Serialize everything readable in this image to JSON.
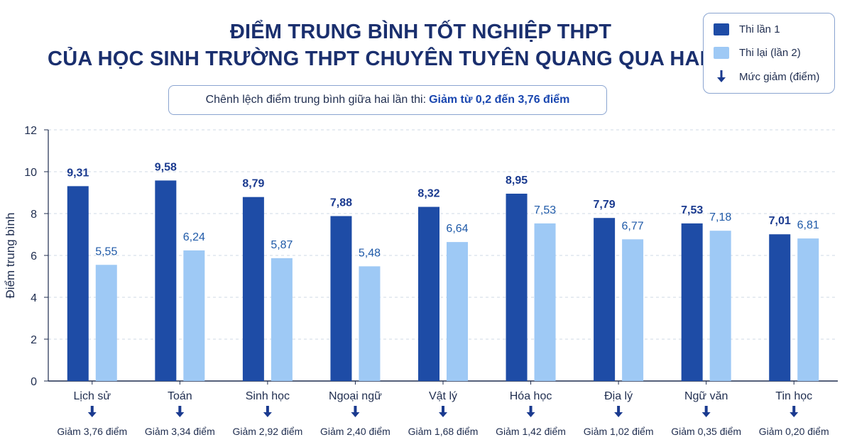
{
  "title_line1": "ĐIỂM TRUNG BÌNH TỐT NGHIỆP THPT",
  "title_line2": "CỦA HỌC SINH TRƯỜNG THPT CHUYÊN TUYÊN QUANG QUA HAI LẦN THI",
  "subtitle_prefix": "Chênh lệch điểm trung bình giữa hai lần thi:",
  "subtitle_highlight": "Giảm từ 0,2 đến 3,76 điểm",
  "legend": {
    "series1": "Thi lần 1",
    "series2": "Thi lại (lần 2)",
    "decrease": "Mức giảm (điểm)"
  },
  "colors": {
    "series1": "#1e4ca6",
    "series2": "#9ec9f5",
    "title": "#1a2f6e",
    "arrow": "#1a3a8f"
  },
  "chart_data": {
    "type": "bar",
    "ylabel": "Điểm trung bình",
    "ylim": [
      0,
      12
    ],
    "yticks": [
      0,
      2,
      4,
      6,
      8,
      10,
      12
    ],
    "grid": "horizontal dashed",
    "legend_position": "top-right",
    "categories": [
      "Lịch sử",
      "Toán",
      "Sinh học",
      "Ngoại ngữ",
      "Vật lý",
      "Hóa học",
      "Địa lý",
      "Ngữ văn",
      "Tin học"
    ],
    "series": [
      {
        "name": "Thi lần 1",
        "values": [
          9.31,
          9.58,
          8.79,
          7.88,
          8.32,
          8.95,
          7.79,
          7.53,
          7.01
        ],
        "labels": [
          "9,31",
          "9,58",
          "8,79",
          "7,88",
          "8,32",
          "8,95",
          "7,79",
          "7,53",
          "7,01"
        ]
      },
      {
        "name": "Thi lại (lần 2)",
        "values": [
          5.55,
          6.24,
          5.87,
          5.48,
          6.64,
          7.53,
          6.77,
          7.18,
          6.81
        ],
        "labels": [
          "5,55",
          "6,24",
          "5,87",
          "5,48",
          "6,64",
          "7,53",
          "6,77",
          "7,18",
          "6,81"
        ]
      }
    ],
    "decrease_labels": [
      "Giảm 3,76 điểm",
      "Giảm 3,34 điểm",
      "Giảm 2,92 điểm",
      "Giảm 2,40 điểm",
      "Giảm 1,68 điểm",
      "Giảm 1,42 điểm",
      "Giảm 1,02 điểm",
      "Giảm 0,35 điểm",
      "Giảm 0,20 điểm"
    ]
  }
}
